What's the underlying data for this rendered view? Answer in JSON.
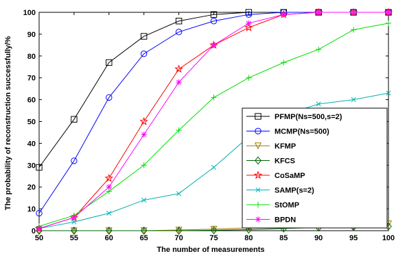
{
  "chart_data": {
    "type": "line",
    "xlabel": "The number of measurements",
    "ylabel": "The probability of reconstruction successfully/%",
    "xlim": [
      50,
      100
    ],
    "ylim": [
      0,
      100
    ],
    "x_ticks": [
      "50",
      "55",
      "60",
      "65",
      "70",
      "75",
      "80",
      "85",
      "90",
      "95",
      "100"
    ],
    "y_ticks": [
      "0",
      "10",
      "20",
      "30",
      "40",
      "50",
      "60",
      "70",
      "80",
      "90",
      "100"
    ],
    "grid": false,
    "legend_position": "right",
    "x": [
      50,
      55,
      60,
      65,
      70,
      75,
      80,
      85,
      90,
      95,
      100
    ],
    "series": [
      {
        "name": "PFMP(Ns=500,s=2)",
        "color": "#000000",
        "marker": "square",
        "values": [
          29,
          51,
          77,
          89,
          96,
          99,
          100,
          100,
          100,
          100,
          100
        ]
      },
      {
        "name": "MCMP(Ns=500)",
        "color": "#0000ff",
        "marker": "circle",
        "values": [
          8,
          32,
          61,
          81,
          91,
          96,
          99,
          100,
          100,
          100,
          100
        ]
      },
      {
        "name": "KFMP",
        "color": "#9b7a00",
        "marker": "triangle-down",
        "values": [
          0,
          0,
          0,
          0,
          0.3,
          0.7,
          1.3,
          1.8,
          2.3,
          2.8,
          3.2
        ]
      },
      {
        "name": "KFCS",
        "color": "#006400",
        "marker": "diamond",
        "values": [
          0,
          0,
          0,
          0,
          0,
          0.2,
          0.5,
          1.0,
          1.4,
          1.7,
          2.0
        ]
      },
      {
        "name": "CoSaMP",
        "color": "#ff0000",
        "marker": "star",
        "values": [
          1,
          6,
          24,
          50,
          74,
          85,
          93,
          99,
          100,
          100,
          100
        ]
      },
      {
        "name": "SAMP(s=2)",
        "color": "#00b0b0",
        "marker": "x",
        "values": [
          1,
          4,
          8,
          14,
          17,
          29,
          43,
          53,
          58,
          60,
          63
        ]
      },
      {
        "name": "StOMP",
        "color": "#00dd00",
        "marker": "plus",
        "values": [
          2,
          7,
          18,
          30,
          46,
          61,
          70,
          77,
          83,
          92,
          95
        ]
      },
      {
        "name": "BPDN",
        "color": "#ff00ff",
        "marker": "asterisk",
        "values": [
          1,
          6,
          20,
          44,
          68,
          85,
          95,
          99,
          100,
          100,
          100
        ]
      }
    ]
  }
}
